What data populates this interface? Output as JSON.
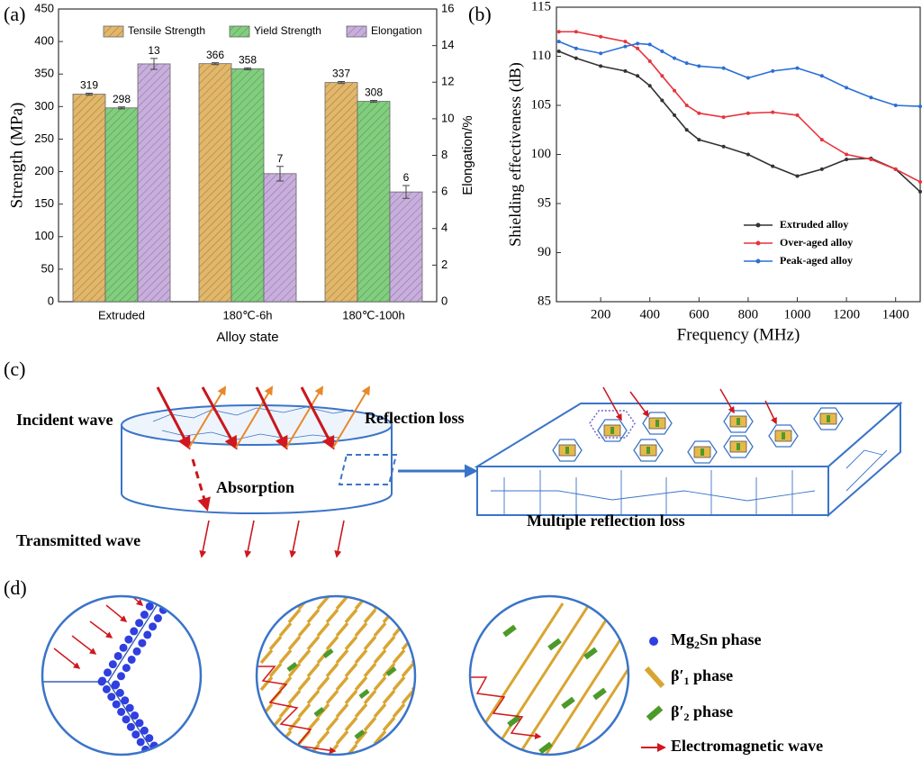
{
  "chart_data": [
    {
      "type": "bar",
      "panel": "(a)",
      "categories": [
        "Extruded",
        "180℃-6h",
        "180℃-100h"
      ],
      "series": [
        {
          "name": "Tensile Strength",
          "color": "#e2b76a",
          "values": [
            319,
            366,
            337
          ],
          "errors": [
            1.5,
            1.5,
            1.5
          ]
        },
        {
          "name": "Yield Strength",
          "color": "#7fcf7f",
          "values": [
            298,
            358,
            308
          ],
          "errors": [
            1.5,
            1.5,
            1.5
          ]
        },
        {
          "name": "Elongation",
          "color": "#c8aee0",
          "values": [
            13,
            7,
            6
          ],
          "errors": [
            0.3,
            0.4,
            0.35
          ],
          "axis": "y2"
        }
      ],
      "xlabel": "Alloy state",
      "ylabel": "Strength (MPa)",
      "y2label": "Elongation/%",
      "ylim": [
        0,
        450
      ],
      "yticks": [
        0,
        50,
        100,
        150,
        200,
        250,
        300,
        350,
        400,
        450
      ],
      "y2lim": [
        0,
        16
      ],
      "y2ticks": [
        0,
        2,
        4,
        6,
        8,
        10,
        12,
        14,
        16
      ],
      "legend": "top"
    },
    {
      "type": "line",
      "panel": "(b)",
      "x": [
        30,
        100,
        200,
        300,
        350,
        400,
        450,
        500,
        550,
        600,
        700,
        800,
        900,
        1000,
        1100,
        1200,
        1300,
        1400,
        1500
      ],
      "series": [
        {
          "name": "Extruded alloy",
          "color": "#333333",
          "values": [
            110.5,
            109.8,
            109.0,
            108.5,
            108.0,
            107.0,
            105.5,
            104.0,
            102.5,
            101.5,
            100.8,
            100.0,
            98.8,
            97.8,
            98.5,
            99.5,
            99.6,
            98.5,
            96.2
          ]
        },
        {
          "name": "Over-aged alloy",
          "color": "#e8343c",
          "values": [
            112.5,
            112.5,
            112.0,
            111.5,
            110.8,
            109.5,
            108.0,
            106.5,
            105.0,
            104.2,
            103.8,
            104.2,
            104.3,
            104.0,
            101.5,
            100.0,
            99.5,
            98.5,
            97.2
          ]
        },
        {
          "name": "Peak-aged alloy",
          "color": "#2b6fd6",
          "values": [
            111.5,
            110.8,
            110.3,
            111.0,
            111.3,
            111.2,
            110.5,
            109.8,
            109.3,
            109.0,
            108.8,
            107.8,
            108.5,
            108.8,
            108.0,
            106.8,
            105.8,
            105.0,
            104.9
          ]
        }
      ],
      "xlabel": "Frequency (MHz)",
      "ylabel": "Shielding effectiveness (dB)",
      "xlim": [
        20,
        1500
      ],
      "xticks": [
        200,
        400,
        600,
        800,
        1000,
        1200,
        1400
      ],
      "ylim": [
        85,
        115
      ],
      "yticks": [
        85,
        90,
        95,
        100,
        105,
        110,
        115
      ],
      "legend": "lower right"
    }
  ],
  "diagram_c": {
    "panel": "(c)",
    "incident": "Incident wave",
    "reflection": "Reflection loss",
    "absorption": "Absorption",
    "transmitted": "Transmitted wave",
    "multiple": "Multiple reflection loss"
  },
  "diagram_d": {
    "panel": "(d)",
    "legend": [
      {
        "main": "Mg",
        "sub": "2",
        "rest": "Sn phase"
      },
      {
        "main": "β′",
        "sub": "1",
        "rest": " phase"
      },
      {
        "main": "β′",
        "sub": "2",
        "rest": " phase"
      },
      {
        "main": "Electromagnetic wave"
      }
    ]
  }
}
